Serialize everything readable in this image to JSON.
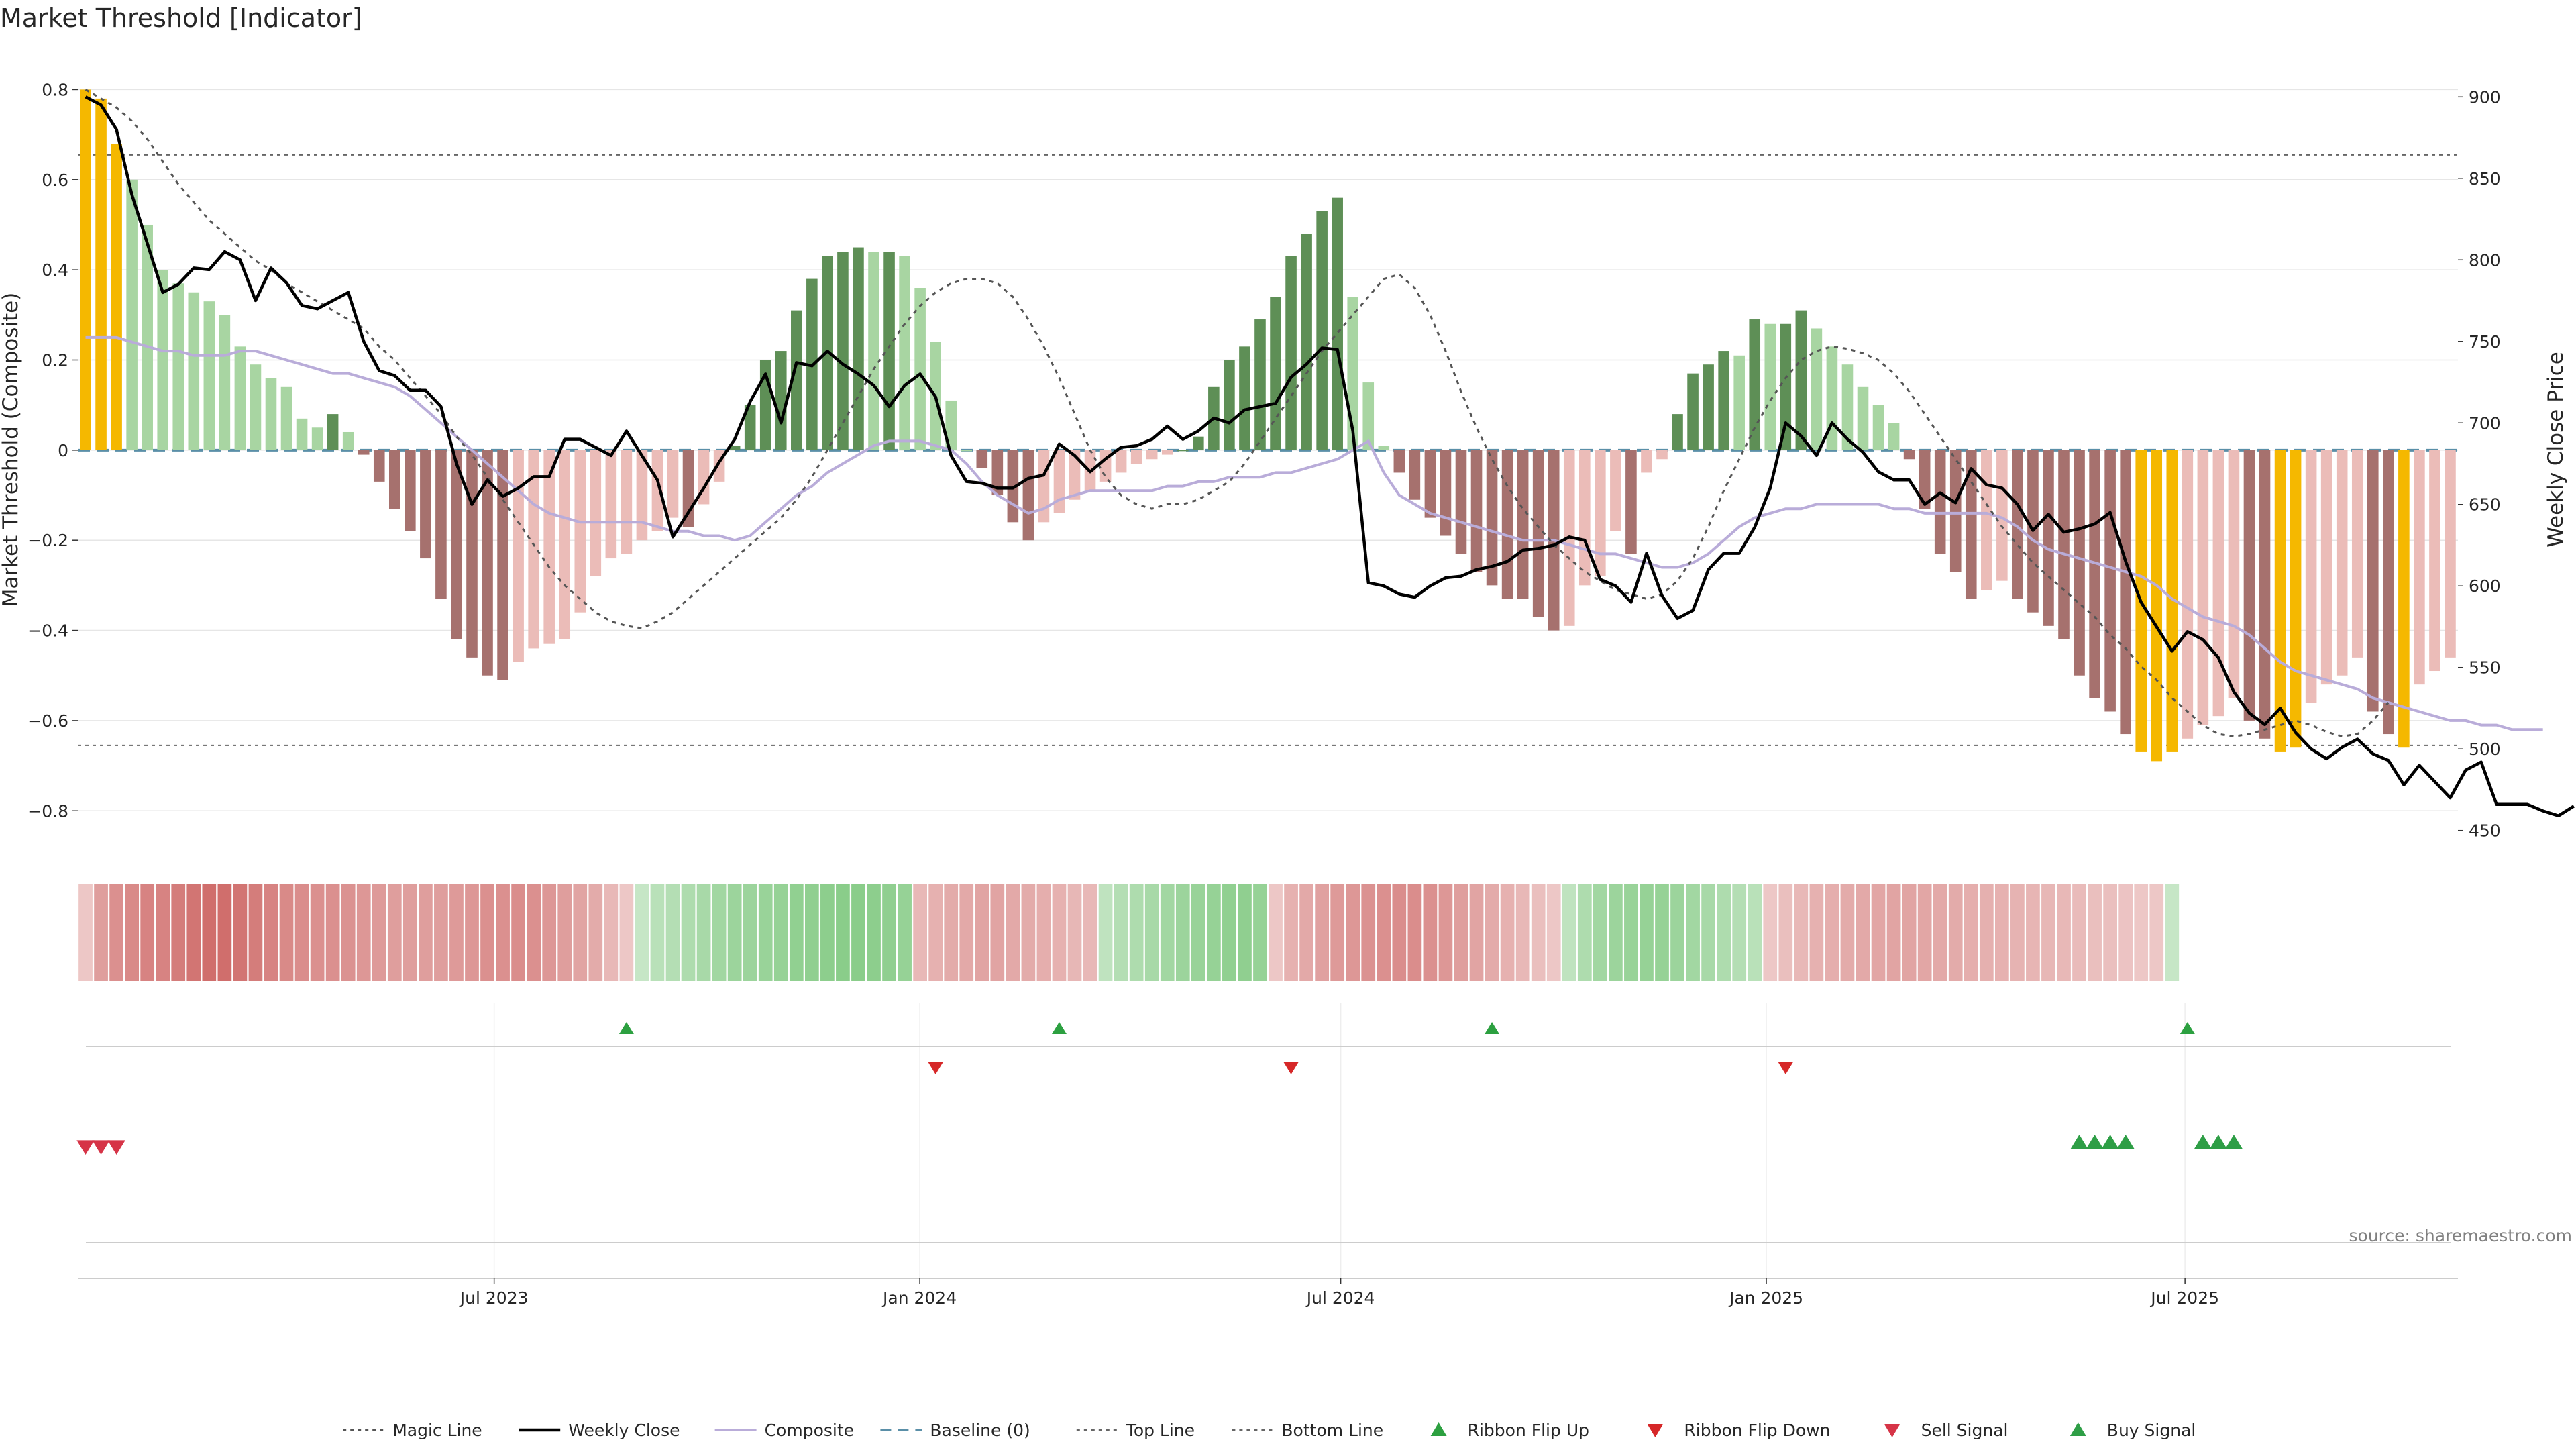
{
  "chart_data": {
    "type": "bar",
    "title": "Market Threshold [Indicator]",
    "source": "source: sharemaestro.com",
    "y_left": {
      "label": "Market Threshold (Composite)",
      "range": [
        -0.88,
        0.82
      ],
      "ticks": [
        0.8,
        0.6,
        0.4,
        0.2,
        0,
        -0.2,
        -0.4,
        -0.6,
        -0.8
      ],
      "tick_labels": [
        "0.8",
        "0.6",
        "0.4",
        "0.2",
        "0",
        "−0.2",
        "−0.4",
        "−0.6",
        "−0.8"
      ]
    },
    "y_right": {
      "label": "Weekly Close Price",
      "range": [
        440,
        910
      ],
      "ticks": [
        900,
        850,
        800,
        750,
        700,
        650,
        600,
        550,
        500,
        450
      ],
      "tick_labels": [
        "900",
        "850",
        "800",
        "750",
        "700",
        "650",
        "600",
        "550",
        "500",
        "450"
      ]
    },
    "x_axis": {
      "start": "2023-01-02",
      "end": "2025-10-27",
      "tick_dates": [
        "2023-07-01",
        "2024-01-01",
        "2024-07-01",
        "2025-01-01",
        "2025-07-01"
      ],
      "tick_labels": [
        "Jul 2023",
        "Jan 2024",
        "Jul 2024",
        "Jan 2025",
        "Jul 2025"
      ]
    },
    "threshold_lines": {
      "top": 0.655,
      "bottom": -0.655,
      "baseline": 0
    },
    "series": [
      {
        "name": "Magic Line",
        "values": [
          0.8,
          0.78,
          0.76,
          0.73,
          0.69,
          0.64,
          0.59,
          0.55,
          0.51,
          0.48,
          0.45,
          0.42,
          0.4,
          0.37,
          0.35,
          0.33,
          0.31,
          0.29,
          0.27,
          0.23,
          0.2,
          0.16,
          0.12,
          0.08,
          0.03,
          -0.01,
          -0.06,
          -0.11,
          -0.16,
          -0.21,
          -0.26,
          -0.3,
          -0.33,
          -0.36,
          -0.38,
          -0.39,
          -0.395,
          -0.38,
          -0.36,
          -0.33,
          -0.3,
          -0.27,
          -0.24,
          -0.21,
          -0.18,
          -0.15,
          -0.11,
          -0.06,
          0.0,
          0.06,
          0.12,
          0.18,
          0.23,
          0.28,
          0.32,
          0.35,
          0.37,
          0.38,
          0.38,
          0.37,
          0.34,
          0.29,
          0.23,
          0.16,
          0.08,
          0.0,
          -0.06,
          -0.1,
          -0.12,
          -0.13,
          -0.12,
          -0.12,
          -0.11,
          -0.09,
          -0.07,
          -0.03,
          0.02,
          0.07,
          0.12,
          0.17,
          0.22,
          0.26,
          0.3,
          0.34,
          0.38,
          0.39,
          0.36,
          0.3,
          0.22,
          0.13,
          0.05,
          -0.02,
          -0.08,
          -0.13,
          -0.17,
          -0.21,
          -0.24,
          -0.27,
          -0.29,
          -0.31,
          -0.32,
          -0.33,
          -0.32,
          -0.29,
          -0.24,
          -0.17,
          -0.09,
          -0.02,
          0.05,
          0.11,
          0.16,
          0.2,
          0.22,
          0.23,
          0.225,
          0.215,
          0.2,
          0.17,
          0.13,
          0.08,
          0.03,
          -0.02,
          -0.07,
          -0.12,
          -0.17,
          -0.21,
          -0.25,
          -0.28,
          -0.31,
          -0.34,
          -0.37,
          -0.41,
          -0.44,
          -0.48,
          -0.51,
          -0.55,
          -0.58,
          -0.61,
          -0.63,
          -0.635,
          -0.63,
          -0.62,
          -0.61,
          -0.6,
          -0.61,
          -0.625,
          -0.635,
          -0.63,
          -0.6,
          -0.56
        ]
      },
      {
        "name": "Weekly Close",
        "values": [
          900,
          895,
          880,
          840,
          810,
          780,
          785,
          795,
          794,
          805,
          800,
          775,
          795,
          786,
          772,
          770,
          775,
          780,
          750,
          732,
          729,
          720,
          720,
          710,
          675,
          650,
          665,
          655,
          660,
          667,
          667,
          690,
          690,
          685,
          680,
          695,
          680,
          665,
          630,
          645,
          660,
          676,
          690,
          713,
          730,
          700,
          737,
          735,
          744,
          736,
          730,
          723,
          710,
          723,
          730,
          716,
          680,
          664,
          663,
          660,
          660,
          666,
          668,
          687,
          680,
          670,
          678,
          685,
          686,
          690,
          698,
          690,
          695,
          703,
          700,
          708,
          710,
          712,
          728,
          736,
          746,
          745,
          695,
          602,
          600,
          595,
          593,
          600,
          605,
          606,
          610,
          612,
          615,
          622,
          623,
          625,
          630,
          628,
          604,
          600,
          590,
          620,
          594,
          580,
          585,
          610,
          620,
          620,
          636,
          660,
          700,
          692,
          680,
          700,
          690,
          682,
          670,
          665,
          665,
          650,
          657,
          651,
          672,
          662,
          660,
          650,
          634,
          644,
          633,
          635,
          638,
          645,
          615,
          590,
          575,
          560,
          572,
          567,
          556,
          535,
          522,
          515,
          525,
          510,
          500,
          494,
          501,
          506,
          497,
          493,
          478,
          490,
          480,
          470,
          487,
          492,
          466,
          466,
          466,
          462,
          459,
          465
        ]
      },
      {
        "name": "Composite",
        "values": [
          0.25,
          0.25,
          0.25,
          0.24,
          0.23,
          0.22,
          0.22,
          0.21,
          0.21,
          0.21,
          0.22,
          0.22,
          0.21,
          0.2,
          0.19,
          0.18,
          0.17,
          0.17,
          0.16,
          0.15,
          0.14,
          0.12,
          0.09,
          0.06,
          0.03,
          0.0,
          -0.03,
          -0.06,
          -0.09,
          -0.12,
          -0.14,
          -0.15,
          -0.16,
          -0.16,
          -0.16,
          -0.16,
          -0.16,
          -0.17,
          -0.18,
          -0.18,
          -0.19,
          -0.19,
          -0.2,
          -0.19,
          -0.16,
          -0.13,
          -0.1,
          -0.08,
          -0.05,
          -0.03,
          -0.01,
          0.01,
          0.02,
          0.02,
          0.02,
          0.01,
          0.0,
          -0.03,
          -0.07,
          -0.1,
          -0.12,
          -0.14,
          -0.13,
          -0.11,
          -0.1,
          -0.09,
          -0.09,
          -0.09,
          -0.09,
          -0.09,
          -0.08,
          -0.08,
          -0.07,
          -0.07,
          -0.06,
          -0.06,
          -0.06,
          -0.05,
          -0.05,
          -0.04,
          -0.03,
          -0.02,
          0.0,
          0.02,
          -0.05,
          -0.1,
          -0.12,
          -0.14,
          -0.15,
          -0.16,
          -0.17,
          -0.18,
          -0.19,
          -0.2,
          -0.2,
          -0.2,
          -0.21,
          -0.22,
          -0.23,
          -0.23,
          -0.24,
          -0.25,
          -0.26,
          -0.26,
          -0.25,
          -0.23,
          -0.2,
          -0.17,
          -0.15,
          -0.14,
          -0.13,
          -0.13,
          -0.12,
          -0.12,
          -0.12,
          -0.12,
          -0.12,
          -0.13,
          -0.13,
          -0.14,
          -0.14,
          -0.14,
          -0.14,
          -0.14,
          -0.15,
          -0.17,
          -0.2,
          -0.22,
          -0.23,
          -0.24,
          -0.25,
          -0.26,
          -0.27,
          -0.28,
          -0.3,
          -0.33,
          -0.35,
          -0.37,
          -0.38,
          -0.39,
          -0.41,
          -0.44,
          -0.47,
          -0.49,
          -0.5,
          -0.51,
          -0.52,
          -0.53,
          -0.55,
          -0.56,
          -0.57,
          -0.58,
          -0.59,
          -0.6,
          -0.6,
          -0.61,
          -0.61,
          -0.62,
          -0.62,
          -0.62
        ]
      },
      {
        "name": "Baseline (0)"
      },
      {
        "name": "Top Line"
      },
      {
        "name": "Bottom Line"
      },
      {
        "name": "Ribbon Flip Up"
      },
      {
        "name": "Ribbon Flip Down"
      },
      {
        "name": "Sell Signal"
      },
      {
        "name": "Buy Signal"
      }
    ],
    "bars": {
      "values": [
        0.8,
        0.78,
        0.68,
        0.6,
        0.5,
        0.4,
        0.37,
        0.35,
        0.33,
        0.3,
        0.23,
        0.19,
        0.16,
        0.14,
        0.07,
        0.05,
        0.08,
        0.04,
        -0.01,
        -0.07,
        -0.13,
        -0.18,
        -0.24,
        -0.33,
        -0.42,
        -0.46,
        -0.5,
        -0.51,
        -0.47,
        -0.44,
        -0.43,
        -0.42,
        -0.36,
        -0.28,
        -0.24,
        -0.23,
        -0.2,
        -0.18,
        -0.15,
        -0.17,
        -0.12,
        -0.07,
        0.01,
        0.1,
        0.2,
        0.22,
        0.31,
        0.38,
        0.43,
        0.44,
        0.45,
        0.44,
        0.44,
        0.43,
        0.36,
        0.24,
        0.11,
        0.0,
        -0.04,
        -0.1,
        -0.16,
        -0.2,
        -0.16,
        -0.14,
        -0.11,
        -0.09,
        -0.07,
        -0.05,
        -0.03,
        -0.02,
        -0.01,
        0.0,
        0.03,
        0.14,
        0.2,
        0.23,
        0.29,
        0.34,
        0.43,
        0.48,
        0.53,
        0.56,
        0.34,
        0.15,
        0.01,
        -0.05,
        -0.11,
        -0.15,
        -0.19,
        -0.23,
        -0.27,
        -0.3,
        -0.33,
        -0.33,
        -0.37,
        -0.4,
        -0.39,
        -0.3,
        -0.28,
        -0.18,
        -0.23,
        -0.05,
        -0.02,
        0.08,
        0.17,
        0.19,
        0.22,
        0.21,
        0.29,
        0.28,
        0.28,
        0.31,
        0.27,
        0.23,
        0.19,
        0.14,
        0.1,
        0.06,
        -0.02,
        -0.13,
        -0.23,
        -0.27,
        -0.33,
        -0.31,
        -0.29,
        -0.33,
        -0.36,
        -0.39,
        -0.42,
        -0.5,
        -0.55,
        -0.58,
        -0.63,
        -0.67,
        -0.69,
        -0.67,
        -0.64,
        -0.61,
        -0.59,
        -0.55,
        -0.6,
        -0.64,
        -0.67,
        -0.66,
        -0.56,
        -0.52,
        -0.5,
        -0.46,
        -0.58,
        -0.63,
        -0.66,
        -0.52,
        -0.49,
        -0.46
      ],
      "colors": {
        "extreme": "#f5b800",
        "strong_pos": "#5e8f56",
        "weak_pos": "#a8d5a2",
        "strong_neg": "#a6716e",
        "weak_neg": "#ebbcb8"
      }
    },
    "ribbon": {
      "values": [
        -0.2,
        -0.5,
        -0.6,
        -0.65,
        -0.7,
        -0.7,
        -0.75,
        -0.8,
        -0.85,
        -0.85,
        -0.8,
        -0.75,
        -0.7,
        -0.65,
        -0.62,
        -0.6,
        -0.6,
        -0.58,
        -0.55,
        -0.52,
        -0.5,
        -0.5,
        -0.5,
        -0.5,
        -0.52,
        -0.55,
        -0.6,
        -0.6,
        -0.62,
        -0.6,
        -0.55,
        -0.5,
        -0.45,
        -0.4,
        -0.3,
        -0.2,
        0.25,
        0.35,
        0.4,
        0.45,
        0.5,
        0.55,
        0.6,
        0.6,
        0.62,
        0.65,
        0.68,
        0.7,
        0.72,
        0.75,
        0.75,
        0.72,
        0.7,
        0.65,
        -0.3,
        -0.35,
        -0.4,
        -0.42,
        -0.45,
        -0.45,
        -0.42,
        -0.4,
        -0.38,
        -0.35,
        -0.32,
        -0.3,
        0.3,
        0.4,
        0.45,
        0.5,
        0.55,
        0.6,
        0.62,
        0.65,
        0.68,
        0.7,
        0.65,
        -0.2,
        -0.35,
        -0.42,
        -0.48,
        -0.52,
        -0.55,
        -0.58,
        -0.6,
        -0.62,
        -0.62,
        -0.6,
        -0.55,
        -0.5,
        -0.45,
        -0.4,
        -0.35,
        -0.3,
        -0.25,
        -0.2,
        0.3,
        0.45,
        0.55,
        0.6,
        0.62,
        0.65,
        0.65,
        0.6,
        0.55,
        0.5,
        0.45,
        0.4,
        0.35,
        -0.2,
        -0.25,
        -0.3,
        -0.35,
        -0.38,
        -0.4,
        -0.42,
        -0.44,
        -0.45,
        -0.45,
        -0.44,
        -0.42,
        -0.4,
        -0.38,
        -0.36,
        -0.35,
        -0.34,
        -0.33,
        -0.32,
        -0.3,
        -0.28,
        -0.26,
        -0.25,
        -0.22,
        -0.2,
        -0.2,
        0.25
      ],
      "pos_color": "#6bbf6b",
      "neg_color": "#c95a58"
    },
    "ribbon_flip_up_weeks": [
      35,
      63,
      91,
      136
    ],
    "ribbon_flip_down_weeks": [
      55,
      78,
      110
    ],
    "sell_signal_weeks": [
      0,
      1,
      2
    ],
    "buy_signal_weeks": [
      129,
      130,
      131,
      132,
      137,
      138,
      139
    ],
    "colors": {
      "weekly_close": "#000000",
      "composite": "#b9acd9",
      "magic_line": "#555555",
      "baseline": "#5a8fa8",
      "flip_up": "#2ca040",
      "flip_down": "#d62728",
      "sell": "#d63447",
      "buy": "#2e9e46",
      "grid": "#e6e6e6",
      "threshold": "#666666"
    },
    "legend_position": "bottom-center",
    "grid": true
  }
}
